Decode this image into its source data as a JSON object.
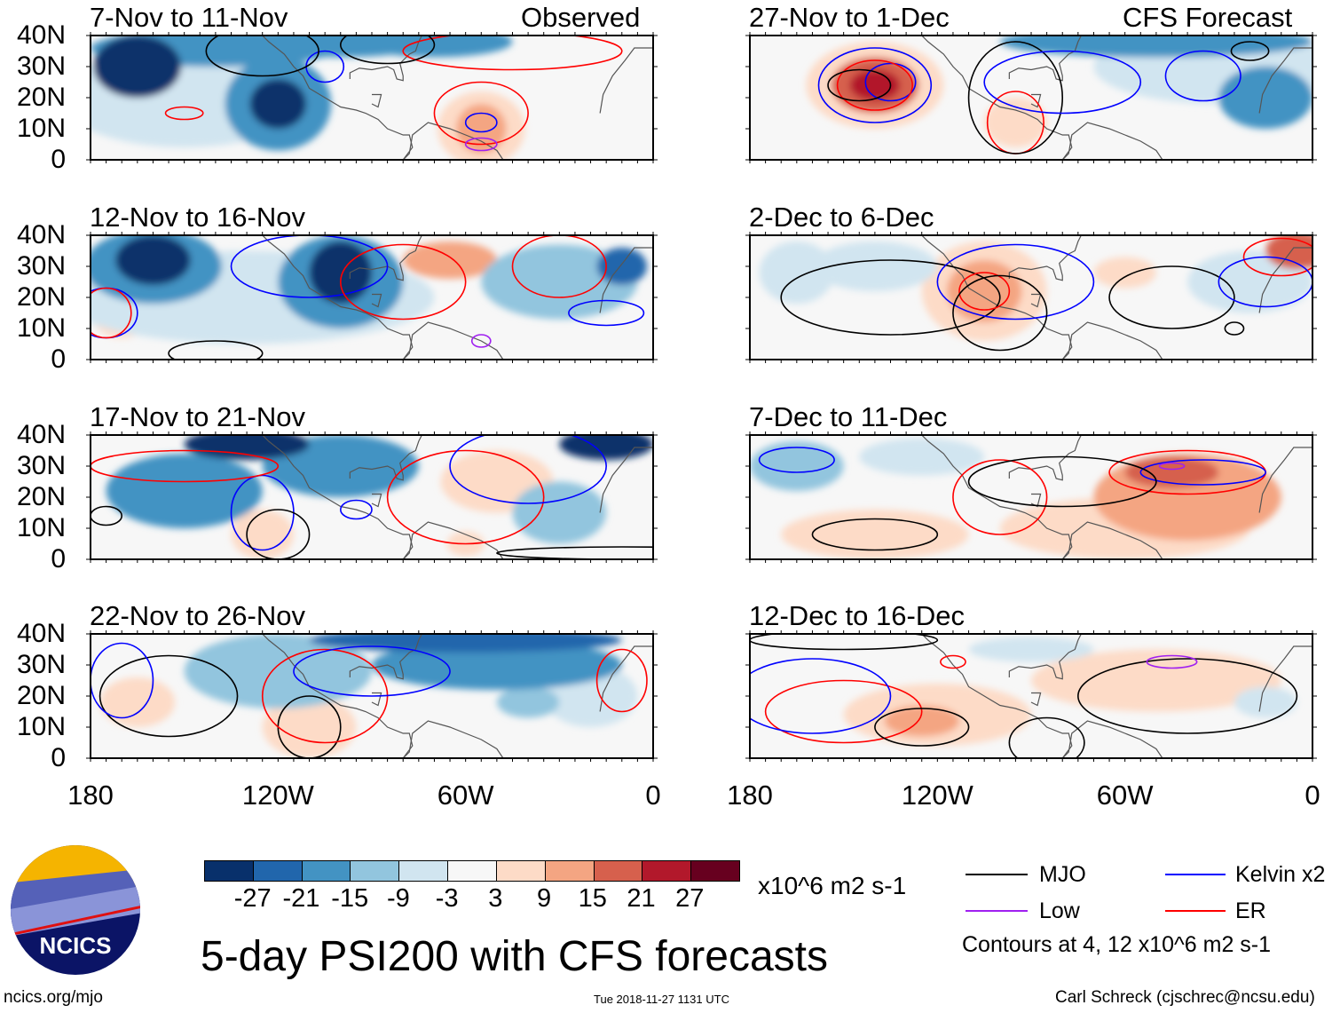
{
  "figure_title": "5-day PSI200 with CFS forecasts",
  "units": "x10^6 m2 s-1",
  "footer": {
    "site": "ncics.org/mjo",
    "timestamp": "Tue 2018-11-27 1131 UTC",
    "author": "Carl Schreck (cjschrec@ncsu.edu)"
  },
  "logo_text": "NCICS",
  "column_labels": {
    "left": "Observed",
    "right": "CFS Forecast"
  },
  "lat_labels": [
    "40N",
    "30N",
    "20N",
    "10N",
    "0"
  ],
  "lon_labels": [
    "180",
    "120W",
    "60W",
    "0"
  ],
  "colorbar": {
    "labels": [
      "-27",
      "-21",
      "-15",
      "-9",
      "-3",
      "3",
      "9",
      "15",
      "21",
      "27"
    ],
    "colors": [
      "#08306b",
      "#2166ac",
      "#4393c3",
      "#92c5de",
      "#d1e5f0",
      "#f7f7f7",
      "#fddbc7",
      "#f4a582",
      "#d6604d",
      "#b2182b",
      "#67001f"
    ]
  },
  "legend": {
    "items": [
      {
        "label": "MJO",
        "color": "#000000"
      },
      {
        "label": "Kelvin x2",
        "color": "#0000ff"
      },
      {
        "label": "Low",
        "color": "#a020f0"
      },
      {
        "label": "ER",
        "color": "#ff0000"
      }
    ],
    "note": "Contours at 4, 12 x10^6 m2 s-1"
  },
  "panels": [
    {
      "title": "7-Nov to 11-Nov",
      "anomalies": [
        [
          165,
          30,
          -30,
          14,
          10
        ],
        [
          140,
          36,
          -20,
          40,
          6
        ],
        [
          120,
          18,
          -30,
          9,
          8
        ],
        [
          120,
          18,
          -20,
          17,
          15
        ],
        [
          100,
          38,
          -20,
          30,
          5
        ],
        [
          70,
          38,
          -20,
          25,
          5
        ],
        [
          150,
          20,
          -9,
          40,
          16
        ],
        [
          55,
          10,
          10,
          8,
          8
        ],
        [
          55,
          10,
          5,
          14,
          12
        ]
      ],
      "contours": [
        [
          "Kelvin",
          105,
          30,
          6,
          5
        ],
        [
          "Kelvin",
          55,
          12,
          5,
          3
        ],
        [
          "ER",
          150,
          15,
          6,
          2
        ],
        [
          "ER",
          55,
          15,
          15,
          10
        ],
        [
          "MJO",
          125,
          35,
          18,
          8
        ],
        [
          "ER",
          45,
          35,
          35,
          6
        ],
        [
          "MJO",
          85,
          37,
          15,
          6
        ],
        [
          "Low",
          55,
          5,
          5,
          2
        ]
      ]
    },
    {
      "title": "27-Nov to 1-Dec",
      "anomalies": [
        [
          140,
          24,
          25,
          8,
          5
        ],
        [
          140,
          24,
          15,
          14,
          9
        ],
        [
          140,
          24,
          5,
          22,
          14
        ],
        [
          50,
          38,
          -20,
          50,
          5
        ],
        [
          15,
          20,
          -18,
          15,
          10
        ],
        [
          30,
          30,
          -9,
          40,
          12
        ],
        [
          95,
          12,
          6,
          10,
          8
        ]
      ],
      "contours": [
        [
          "Kelvin",
          140,
          24,
          18,
          12
        ],
        [
          "Kelvin",
          135,
          25,
          8,
          6
        ],
        [
          "ER",
          140,
          24,
          12,
          8
        ],
        [
          "MJO",
          145,
          24,
          10,
          5
        ],
        [
          "ER",
          95,
          12,
          9,
          10
        ],
        [
          "MJO",
          95,
          20,
          15,
          18
        ],
        [
          "Kelvin",
          80,
          25,
          25,
          10
        ],
        [
          "Kelvin",
          35,
          27,
          12,
          8
        ],
        [
          "MJO",
          20,
          35,
          6,
          3
        ]
      ]
    },
    {
      "title": "12-Nov to 16-Nov",
      "anomalies": [
        [
          160,
          32,
          -30,
          12,
          8
        ],
        [
          160,
          30,
          -20,
          22,
          12
        ],
        [
          100,
          28,
          -30,
          10,
          10
        ],
        [
          100,
          25,
          -20,
          20,
          15
        ],
        [
          130,
          20,
          -9,
          60,
          15
        ],
        [
          65,
          32,
          9,
          15,
          6
        ],
        [
          10,
          30,
          -25,
          8,
          6
        ],
        [
          30,
          25,
          -15,
          25,
          12
        ],
        [
          170,
          15,
          5,
          10,
          8
        ]
      ],
      "contours": [
        [
          "Kelvin",
          110,
          30,
          25,
          10
        ],
        [
          "ER",
          80,
          25,
          20,
          12
        ],
        [
          "ER",
          30,
          30,
          15,
          10
        ],
        [
          "Low",
          55,
          6,
          3,
          2
        ],
        [
          "Kelvin",
          175,
          15,
          10,
          8
        ],
        [
          "ER",
          175,
          15,
          8,
          8
        ],
        [
          "MJO",
          140,
          2,
          15,
          4
        ],
        [
          "Kelvin",
          15,
          15,
          12,
          4
        ]
      ]
    },
    {
      "title": "2-Dec to 6-Dec",
      "anomalies": [
        [
          105,
          22,
          12,
          12,
          10
        ],
        [
          105,
          22,
          5,
          20,
          16
        ],
        [
          165,
          28,
          -9,
          12,
          10
        ],
        [
          140,
          30,
          -6,
          20,
          8
        ],
        [
          60,
          28,
          6,
          10,
          5
        ],
        [
          5,
          35,
          20,
          10,
          6
        ],
        [
          20,
          25,
          -9,
          20,
          10
        ]
      ],
      "contours": [
        [
          "MJO",
          135,
          20,
          35,
          12
        ],
        [
          "Kelvin",
          95,
          25,
          25,
          12
        ],
        [
          "ER",
          105,
          22,
          8,
          6
        ],
        [
          "MJO",
          100,
          15,
          15,
          12
        ],
        [
          "MJO",
          45,
          20,
          20,
          10
        ],
        [
          "ER",
          10,
          33,
          12,
          6
        ],
        [
          "Kelvin",
          15,
          25,
          15,
          8
        ],
        [
          "MJO",
          25,
          10,
          3,
          2
        ]
      ]
    },
    {
      "title": "17-Nov to 21-Nov",
      "anomalies": [
        [
          130,
          37,
          -30,
          20,
          5
        ],
        [
          15,
          37,
          -28,
          15,
          5
        ],
        [
          150,
          22,
          -20,
          25,
          12
        ],
        [
          100,
          30,
          -20,
          25,
          10
        ],
        [
          50,
          25,
          6,
          18,
          10
        ],
        [
          125,
          8,
          6,
          10,
          8
        ],
        [
          60,
          5,
          8,
          6,
          4
        ],
        [
          30,
          15,
          -15,
          15,
          10
        ]
      ],
      "contours": [
        [
          "MJO",
          175,
          14,
          5,
          3
        ],
        [
          "Kelvin",
          125,
          15,
          10,
          12
        ],
        [
          "MJO",
          120,
          8,
          10,
          8
        ],
        [
          "ER",
          150,
          30,
          30,
          5
        ],
        [
          "ER",
          60,
          20,
          25,
          15
        ],
        [
          "Kelvin",
          40,
          30,
          25,
          12
        ],
        [
          "Kelvin",
          95,
          16,
          5,
          3
        ],
        [
          "MJO",
          10,
          2,
          40,
          2
        ]
      ]
    },
    {
      "title": "7-Dec to 11-Dec",
      "anomalies": [
        [
          45,
          28,
          18,
          15,
          5
        ],
        [
          40,
          20,
          9,
          30,
          14
        ],
        [
          140,
          8,
          5,
          30,
          8
        ],
        [
          165,
          30,
          -15,
          15,
          8
        ],
        [
          125,
          33,
          -9,
          20,
          6
        ],
        [
          60,
          10,
          4,
          40,
          10
        ]
      ],
      "contours": [
        [
          "ER",
          100,
          20,
          15,
          12
        ],
        [
          "ER",
          40,
          28,
          25,
          7
        ],
        [
          "Kelvin",
          35,
          28,
          20,
          4
        ],
        [
          "Low",
          45,
          30,
          4,
          1
        ],
        [
          "MJO",
          140,
          8,
          20,
          5
        ],
        [
          "MJO",
          80,
          25,
          30,
          8
        ],
        [
          "Kelvin",
          165,
          32,
          12,
          4
        ]
      ]
    },
    {
      "title": "22-Nov to 26-Nov",
      "anomalies": [
        [
          60,
          38,
          -27,
          50,
          4
        ],
        [
          50,
          30,
          -18,
          40,
          8
        ],
        [
          40,
          18,
          -15,
          10,
          5
        ],
        [
          120,
          28,
          -12,
          30,
          12
        ],
        [
          110,
          10,
          6,
          15,
          10
        ],
        [
          165,
          18,
          5,
          12,
          8
        ],
        [
          20,
          20,
          -9,
          15,
          10
        ]
      ],
      "contours": [
        [
          "MJO",
          155,
          20,
          22,
          13
        ],
        [
          "MJO",
          110,
          10,
          10,
          10
        ],
        [
          "Kelvin",
          170,
          25,
          10,
          12
        ],
        [
          "ER",
          105,
          20,
          20,
          15
        ],
        [
          "Kelvin",
          90,
          28,
          25,
          8
        ],
        [
          "ER",
          10,
          25,
          8,
          10
        ]
      ]
    },
    {
      "title": "12-Dec to 16-Dec",
      "anomalies": [
        [
          125,
          12,
          12,
          12,
          5
        ],
        [
          120,
          14,
          5,
          30,
          10
        ],
        [
          50,
          25,
          5,
          40,
          10
        ],
        [
          15,
          18,
          -6,
          10,
          5
        ],
        [
          90,
          35,
          -6,
          20,
          4
        ]
      ],
      "contours": [
        [
          "ER",
          150,
          15,
          25,
          10
        ],
        [
          "MJO",
          125,
          10,
          15,
          6
        ],
        [
          "Kelvin",
          160,
          20,
          25,
          12
        ],
        [
          "MJO",
          85,
          5,
          12,
          8
        ],
        [
          "MJO",
          40,
          20,
          35,
          12
        ],
        [
          "Low",
          45,
          31,
          8,
          2
        ],
        [
          "ER",
          115,
          31,
          4,
          2
        ],
        [
          "MJO",
          150,
          38,
          30,
          3
        ]
      ]
    }
  ]
}
